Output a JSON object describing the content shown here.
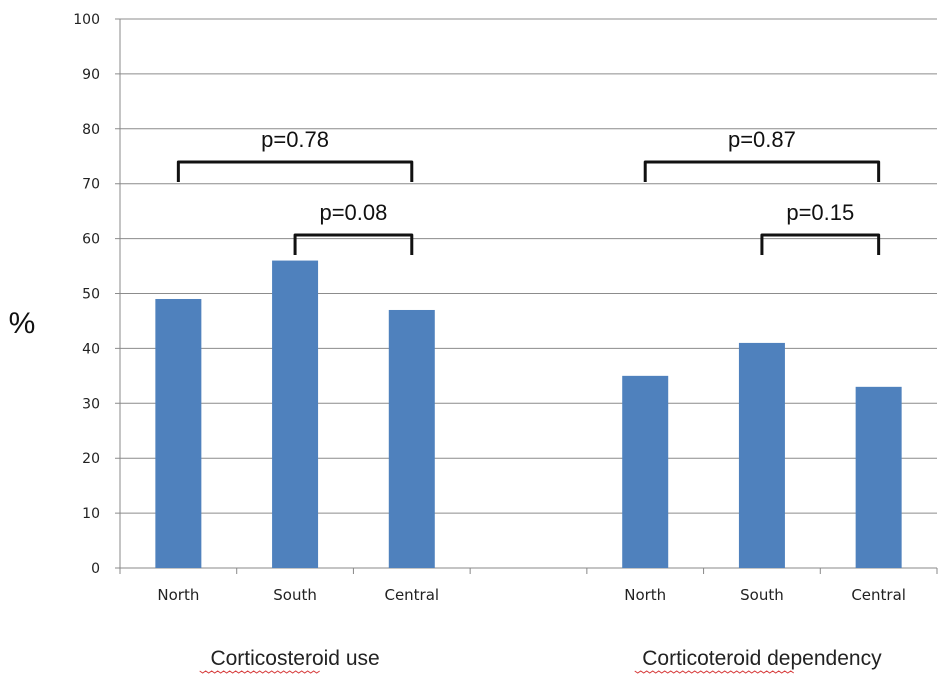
{
  "chart_data": {
    "type": "bar",
    "title": "",
    "xlabel": "",
    "ylabel": "%",
    "ylim": [
      0,
      100
    ],
    "y_ticks": [
      0,
      10,
      20,
      30,
      40,
      50,
      60,
      70,
      80,
      90,
      100
    ],
    "grid": true,
    "color": "#4F81BD",
    "groups": [
      {
        "name": "Corticosteroid use",
        "categories": [
          "North",
          "South",
          "Central"
        ],
        "values": [
          49,
          56,
          47
        ],
        "comparisons": [
          {
            "label": "p=0.78",
            "from": "North",
            "to": "Central"
          },
          {
            "label": "p=0.08",
            "from": "South",
            "to": "Central"
          }
        ]
      },
      {
        "name": "Corticoteroid dependency",
        "categories": [
          "North",
          "South",
          "Central"
        ],
        "values": [
          35,
          41,
          33
        ],
        "comparisons": [
          {
            "label": "p=0.87",
            "from": "North",
            "to": "Central"
          },
          {
            "label": "p=0.15",
            "from": "South",
            "to": "Central"
          }
        ]
      }
    ]
  }
}
